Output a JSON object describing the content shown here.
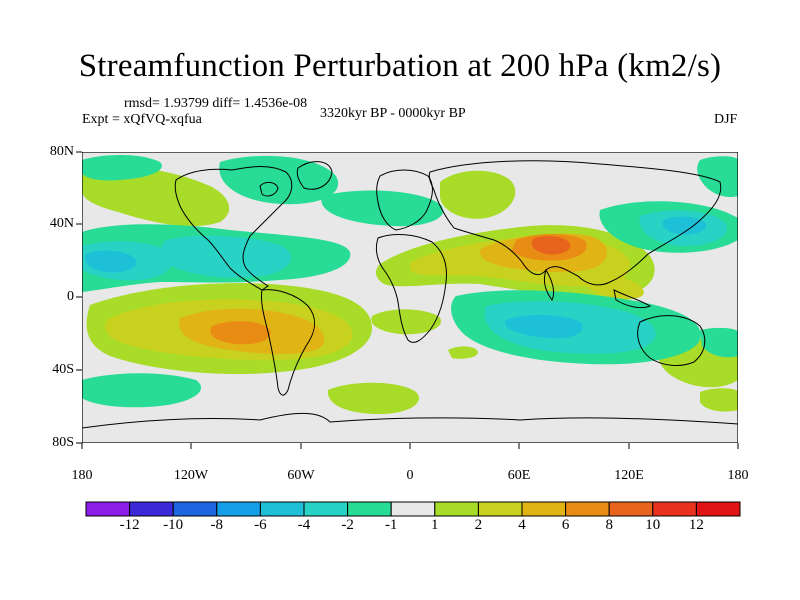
{
  "title": "Streamfunction Perturbation at 200 hPa (km2/s)",
  "stats": "rmsd= 1.93799 diff= 1.4536e-08",
  "experiment": "Expt = xQfVQ-xqfua",
  "period": "3320kyr BP - 0000kyr BP",
  "season": "DJF",
  "lat_ticks": [
    "80N",
    "40N",
    "0",
    "40S",
    "80S"
  ],
  "lon_ticks": [
    "180",
    "120W",
    "60W",
    "0",
    "60E",
    "120E",
    "180"
  ],
  "colorbar": {
    "labels": [
      "-12",
      "-10",
      "-8",
      "-6",
      "-4",
      "-2",
      "-1",
      "1",
      "2",
      "4",
      "6",
      "8",
      "10",
      "12"
    ],
    "colors": [
      "#8a1ee8",
      "#3c2ad8",
      "#1e66e0",
      "#14a0e8",
      "#1ec0d8",
      "#28d2c4",
      "#28dc96",
      "#e8e8e8",
      "#a8dc28",
      "#c8d21e",
      "#e0b414",
      "#e88c14",
      "#e8641e",
      "#e8321e",
      "#e01414"
    ]
  },
  "chart_data": {
    "type": "filled-contour-map",
    "variable": "Streamfunction Perturbation at 200 hPa",
    "units": "km2/s",
    "levels": [
      -12,
      -10,
      -8,
      -6,
      -4,
      -2,
      -1,
      1,
      2,
      4,
      6,
      8,
      10,
      12
    ],
    "lat_range": [
      -90,
      90
    ],
    "lon_range": [
      -180,
      180
    ],
    "features": [
      {
        "lon": 78,
        "lat": 28,
        "value": 7,
        "note": "maximum over South Asia"
      },
      {
        "lon": -90,
        "lat": -22,
        "value": 4,
        "note": "positive centre over South America / E Pacific"
      },
      {
        "lon": 80,
        "lat": -20,
        "value": -4,
        "note": "negative centre over southern Indian Ocean"
      },
      {
        "lon": -150,
        "lat": 22,
        "value": -3,
        "note": "negative centre over NE Pacific"
      },
      {
        "lon": -120,
        "lat": 15,
        "value": -3,
        "note": "negative centre over E Pacific"
      },
      {
        "lon": 150,
        "lat": 40,
        "value": -2,
        "note": "negative centre over NW Pacific"
      }
    ]
  }
}
